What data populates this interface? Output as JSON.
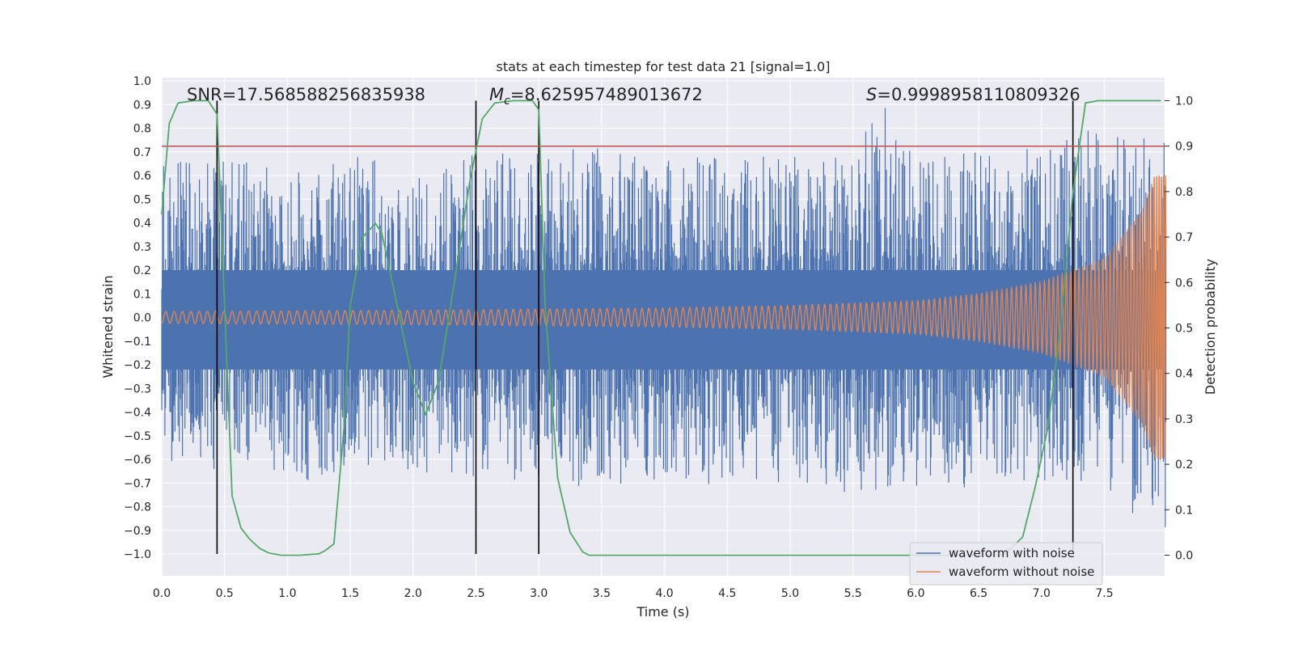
{
  "chart_data": {
    "type": "line",
    "title": "stats at each timestep for test data 21 [signal=1.0]",
    "xlabel": "Time (s)",
    "ylabel": "Whitened strain",
    "y2label": "Detection probability",
    "xlim": [
      0.0,
      8.0
    ],
    "ylim": [
      -1.1,
      1.1
    ],
    "y2lim": [
      -0.05,
      1.05
    ],
    "xticks": [
      "0.0",
      "0.5",
      "1.0",
      "1.5",
      "2.0",
      "2.5",
      "3.0",
      "3.5",
      "4.0",
      "4.5",
      "5.0",
      "5.5",
      "6.0",
      "6.5",
      "7.0",
      "7.5"
    ],
    "yticks": [
      "−1.0",
      "−0.9",
      "−0.8",
      "−0.7",
      "−0.6",
      "−0.5",
      "−0.4",
      "−0.3",
      "−0.2",
      "−0.1",
      "0.0",
      "0.1",
      "0.2",
      "0.3",
      "0.4",
      "0.5",
      "0.6",
      "0.7",
      "0.8",
      "0.9",
      "1.0"
    ],
    "y2ticks": [
      "0.0",
      "0.1",
      "0.2",
      "0.3",
      "0.4",
      "0.5",
      "0.6",
      "0.7",
      "0.8",
      "0.9",
      "1.0"
    ],
    "grid": true,
    "legend_position": "lower-right",
    "annotations": {
      "snr_label": "SNR=17.568588256835938",
      "mc_symbol": "M",
      "mc_subscript": "c",
      "mc_value": "=8.625957489013672",
      "s_symbol": "S",
      "s_value": "=0.9998958110809326"
    },
    "threshold": {
      "axis": "y2",
      "value": 0.9,
      "color": "#c44e52"
    },
    "vertical_lines": [
      0.44,
      2.5,
      3.0,
      7.25
    ],
    "series": [
      {
        "name": "waveform with noise",
        "axis": "y",
        "color": "#4c72b0",
        "style": "dense noisy envelope",
        "envelope_positive": [
          [
            0.0,
            0.65
          ],
          [
            0.5,
            0.68
          ],
          [
            1.0,
            0.62
          ],
          [
            1.5,
            0.68
          ],
          [
            2.0,
            0.67
          ],
          [
            2.5,
            0.7
          ],
          [
            3.0,
            0.7
          ],
          [
            3.5,
            0.72
          ],
          [
            4.0,
            0.7
          ],
          [
            4.5,
            0.68
          ],
          [
            5.0,
            0.72
          ],
          [
            5.5,
            0.72
          ],
          [
            5.75,
            0.91
          ],
          [
            6.0,
            0.68
          ],
          [
            6.5,
            0.7
          ],
          [
            7.0,
            0.75
          ],
          [
            7.2,
            0.81
          ],
          [
            7.5,
            0.8
          ],
          [
            7.9,
            0.75
          ]
        ],
        "envelope_negative": [
          [
            0.0,
            -0.55
          ],
          [
            0.2,
            -0.7
          ],
          [
            0.6,
            -0.62
          ],
          [
            1.0,
            -0.68
          ],
          [
            1.35,
            -0.75
          ],
          [
            1.5,
            -0.62
          ],
          [
            2.0,
            -0.65
          ],
          [
            2.5,
            -0.68
          ],
          [
            3.0,
            -0.7
          ],
          [
            3.5,
            -0.72
          ],
          [
            4.0,
            -0.7
          ],
          [
            4.5,
            -0.72
          ],
          [
            5.0,
            -0.7
          ],
          [
            5.5,
            -0.75
          ],
          [
            6.0,
            -0.72
          ],
          [
            6.5,
            -0.73
          ],
          [
            7.0,
            -0.7
          ],
          [
            7.5,
            -0.72
          ],
          [
            7.9,
            -1.0
          ]
        ]
      },
      {
        "name": "waveform without noise",
        "axis": "y",
        "color": "#dd8452",
        "style": "chirp",
        "amplitude_envelope": [
          [
            0.0,
            0.025
          ],
          [
            2.0,
            0.03
          ],
          [
            4.0,
            0.04
          ],
          [
            5.0,
            0.05
          ],
          [
            6.0,
            0.07
          ],
          [
            6.5,
            0.1
          ],
          [
            7.0,
            0.15
          ],
          [
            7.5,
            0.25
          ],
          [
            7.8,
            0.45
          ],
          [
            7.9,
            0.6
          ]
        ]
      },
      {
        "name": "detection probability",
        "axis": "y2",
        "color": "#55a868",
        "x": [
          0.0,
          0.06,
          0.13,
          0.25,
          0.37,
          0.44,
          0.5,
          0.56,
          0.63,
          0.7,
          0.78,
          0.85,
          0.95,
          1.1,
          1.25,
          1.3,
          1.37,
          1.45,
          1.5,
          1.6,
          1.7,
          1.75,
          1.85,
          2.0,
          2.1,
          2.2,
          2.3,
          2.45,
          2.55,
          2.65,
          2.8,
          2.95,
          3.0,
          3.05,
          3.15,
          3.25,
          3.35,
          3.4,
          5.0,
          5.75,
          6.0,
          6.5,
          6.7,
          6.85,
          6.95,
          7.05,
          7.15,
          7.25,
          7.35,
          7.45,
          7.95
        ],
        "y": [
          0.75,
          0.95,
          0.995,
          1.0,
          1.0,
          0.97,
          0.55,
          0.13,
          0.06,
          0.035,
          0.015,
          0.005,
          0.0,
          0.0,
          0.003,
          0.01,
          0.025,
          0.28,
          0.55,
          0.7,
          0.73,
          0.71,
          0.58,
          0.38,
          0.31,
          0.38,
          0.55,
          0.82,
          0.96,
          0.995,
          1.0,
          1.0,
          0.98,
          0.55,
          0.17,
          0.05,
          0.007,
          0.0,
          0.0,
          0.0,
          0.0,
          0.0,
          0.0,
          0.04,
          0.15,
          0.28,
          0.5,
          0.8,
          0.995,
          1.0,
          1.0
        ]
      }
    ]
  },
  "legend": {
    "item1": "waveform with noise",
    "item2": "waveform without noise"
  }
}
